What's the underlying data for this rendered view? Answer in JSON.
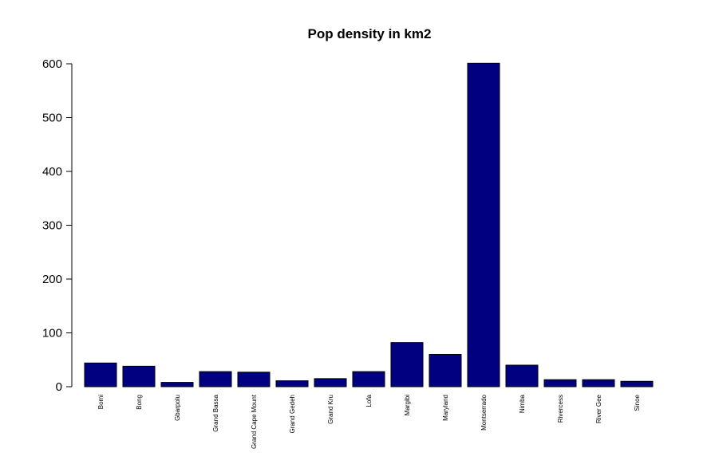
{
  "chart_data": {
    "type": "bar",
    "title": "Pop density in km2",
    "xlabel": "",
    "ylabel": "",
    "ylim": [
      0,
      600
    ],
    "yticks": [
      0,
      100,
      200,
      300,
      400,
      500,
      600
    ],
    "bar_color": "#000080",
    "categories": [
      "Bomi",
      "Bong",
      "Gbarpolu",
      "Grand Bassa",
      "Grand Cape Mount",
      "Grand Gedeh",
      "Grand Kru",
      "Lofa",
      "Margibi",
      "Maryland",
      "Montserrado",
      "Nimba",
      "Rivercess",
      "River Gee",
      "Sinoe"
    ],
    "values": [
      44,
      38,
      8,
      28,
      27,
      11,
      15,
      28,
      82,
      60,
      601,
      40,
      13,
      13,
      10
    ]
  }
}
